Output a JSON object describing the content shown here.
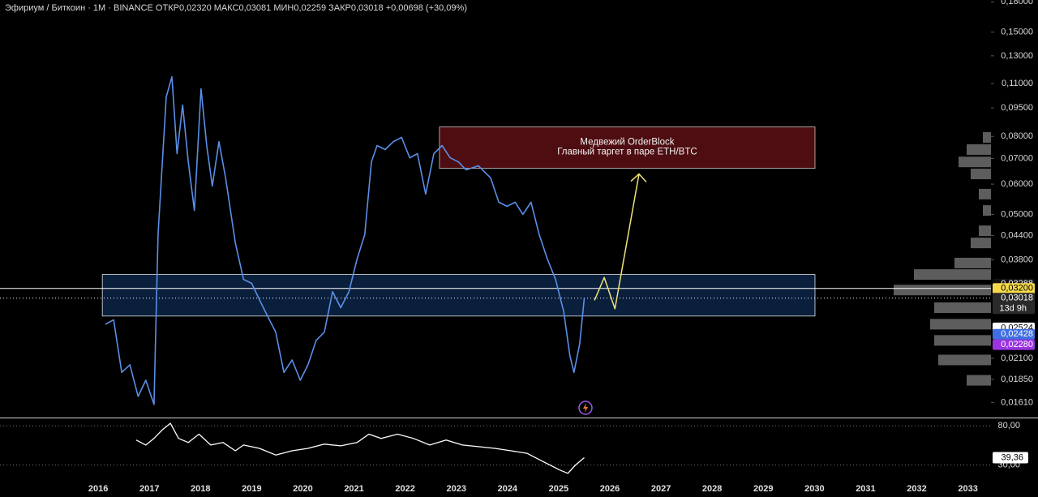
{
  "chart_data": [
    {
      "type": "line",
      "log_scale": true,
      "title": "Эфириум / Биткоин · 1М · BINANCE  ОТКР0,02320  МАКС0,03081  МИН0,02259  ЗАКР0,03018  +0,00698 (+30,09%)",
      "xlim": [
        2014.08,
        2033.45
      ],
      "xticks": [
        2016,
        2017,
        2018,
        2019,
        2020,
        2021,
        2022,
        2023,
        2024,
        2025,
        2026,
        2027,
        2028,
        2029,
        2030,
        2031,
        2032,
        2033
      ],
      "ylim": [
        0.0147,
        0.182
      ],
      "yticks": [
        {
          "value": 0.18,
          "label": "0,18000"
        },
        {
          "value": 0.15,
          "label": "0,15000"
        },
        {
          "value": 0.13,
          "label": "0,13000"
        },
        {
          "value": 0.11,
          "label": "0,11000"
        },
        {
          "value": 0.095,
          "label": "0,09500"
        },
        {
          "value": 0.08,
          "label": "0,08000"
        },
        {
          "value": 0.07,
          "label": "0,07000"
        },
        {
          "value": 0.06,
          "label": "0,06000"
        },
        {
          "value": 0.05,
          "label": "0,05000"
        },
        {
          "value": 0.044,
          "label": "0,04400"
        },
        {
          "value": 0.038,
          "label": "0,03800"
        },
        {
          "value": 0.021,
          "label": "0,02100"
        },
        {
          "value": 0.0185,
          "label": "0,01850"
        },
        {
          "value": 0.0161,
          "label": "0,01610"
        }
      ],
      "series": [
        {
          "color": "#5b8fe8",
          "x": [
            2016.14,
            2016.3,
            2016.46,
            2016.62,
            2016.78,
            2016.93,
            2017.09,
            2017.17,
            2017.33,
            2017.44,
            2017.54,
            2017.65,
            2017.76,
            2017.88,
            2018.01,
            2018.12,
            2018.23,
            2018.36,
            2018.49,
            2018.68,
            2018.84,
            2019.0,
            2019.15,
            2019.31,
            2019.47,
            2019.63,
            2019.79,
            2019.95,
            2020.1,
            2020.26,
            2020.42,
            2020.58,
            2020.74,
            2020.9,
            2021.06,
            2021.21,
            2021.34,
            2021.45,
            2021.61,
            2021.77,
            2021.93,
            2022.09,
            2022.24,
            2022.4,
            2022.56,
            2022.72,
            2022.88,
            2023.04,
            2023.19,
            2023.43,
            2023.67,
            2023.83,
            2023.99,
            2024.15,
            2024.3,
            2024.46,
            2024.62,
            2024.78,
            2024.94,
            2025.1,
            2025.22,
            2025.3,
            2025.41,
            2025.5
          ],
          "values": [
            0.0258,
            0.0265,
            0.0193,
            0.0202,
            0.0167,
            0.0184,
            0.0159,
            0.0443,
            0.1015,
            0.1146,
            0.0721,
            0.0966,
            0.0686,
            0.0512,
            0.1066,
            0.0757,
            0.0593,
            0.0775,
            0.0623,
            0.0421,
            0.0338,
            0.033,
            0.0299,
            0.0271,
            0.0246,
            0.0193,
            0.0208,
            0.0184,
            0.0202,
            0.0234,
            0.0246,
            0.0314,
            0.0285,
            0.0314,
            0.0382,
            0.0443,
            0.0686,
            0.0757,
            0.0739,
            0.0775,
            0.0795,
            0.0703,
            0.0721,
            0.0565,
            0.0721,
            0.0757,
            0.0703,
            0.0686,
            0.0654,
            0.067,
            0.0623,
            0.0538,
            0.0525,
            0.0538,
            0.05,
            0.0538,
            0.0443,
            0.0382,
            0.0338,
            0.0278,
            0.0213,
            0.0193,
            0.0229,
            0.03018
          ]
        }
      ],
      "zones": [
        {
          "x": [
            2022.67,
            2030.01
          ],
          "y": [
            0.066,
            0.0847
          ],
          "color": "#5c0f14",
          "border": "#c9c9c9",
          "label_lines": [
            "Медвежий OrderBlock",
            "Главный таргет в паре ETH/BTC"
          ]
        },
        {
          "x": [
            2016.08,
            2030.01
          ],
          "y": [
            0.0271,
            0.0348
          ],
          "color": "#0c2447",
          "border": "#e6e6e6"
        }
      ],
      "hlines": [
        {
          "value": 0.032,
          "dash": "none"
        },
        {
          "value": 0.03018,
          "dash": "1 3"
        }
      ],
      "projection": {
        "color": "#f0e27a",
        "x": [
          2025.7,
          2025.89,
          2026.1,
          2026.57
        ],
        "values": [
          0.0298,
          0.0342,
          0.0283,
          0.0638
        ]
      },
      "volume_profile": {
        "color": "#6d6d6d",
        "levels": [
          0.0184,
          0.0208,
          0.0234,
          0.0258,
          0.0285,
          0.0317,
          0.0348,
          0.0373,
          0.0421,
          0.0453,
          0.0512,
          0.0565,
          0.0638,
          0.0686,
          0.0739,
          0.0795
        ],
        "values": [
          30,
          65,
          70,
          75,
          70,
          120,
          95,
          45,
          25,
          15,
          10,
          15,
          25,
          40,
          30,
          10
        ]
      },
      "price_labels": [
        {
          "value": 0.03288,
          "label": "0,03288",
          "color": "#111111",
          "text_color": "#ffffff"
        },
        {
          "value": 0.032,
          "label": "0,03200",
          "color": "#f5d94a",
          "text_color": "#000000"
        },
        {
          "value": 0.03018,
          "label": "0,03018",
          "color": "#2a2a2a",
          "text_color": "#ffffff",
          "countdown": "13d 9h"
        },
        {
          "value": 0.02524,
          "label": "0,02524",
          "color": "#ffffff",
          "text_color": "#000000"
        },
        {
          "value": 0.02428,
          "label": "0,02428",
          "color": "#3f6fe0",
          "text_color": "#ffffff"
        },
        {
          "value": 0.0228,
          "label": "0,02280",
          "color": "#9b34e0",
          "text_color": "#ffffff"
        }
      ]
    },
    {
      "type": "line",
      "ylim": [
        10.9,
        88.5
      ],
      "yticks": [
        {
          "value": 80,
          "label": "80,00"
        },
        {
          "value": 30,
          "label": "30,00"
        }
      ],
      "series": [
        {
          "color": "#ffffff",
          "x": [
            2016.74,
            2016.93,
            2017.09,
            2017.25,
            2017.41,
            2017.57,
            2017.76,
            2017.97,
            2018.2,
            2018.44,
            2018.68,
            2018.84,
            2019.15,
            2019.47,
            2019.79,
            2020.1,
            2020.42,
            2020.74,
            2021.06,
            2021.29,
            2021.53,
            2021.85,
            2022.16,
            2022.48,
            2022.8,
            2023.12,
            2023.43,
            2023.75,
            2024.07,
            2024.38,
            2024.7,
            2025.02,
            2025.18,
            2025.33,
            2025.5
          ],
          "values": [
            61.9,
            55.5,
            64.0,
            74.7,
            83.2,
            64.0,
            58.7,
            69.4,
            55.5,
            58.7,
            48.1,
            55.5,
            51.3,
            42.8,
            48.1,
            51.3,
            56.6,
            54.5,
            58.7,
            69.4,
            64.0,
            69.4,
            64.0,
            55.5,
            61.9,
            55.5,
            53.4,
            51.3,
            48.1,
            44.9,
            34.3,
            23.6,
            19.4,
            30.0,
            39.36
          ],
          "value_labels": [
            null,
            null,
            null,
            null,
            null,
            null,
            null,
            null,
            null,
            null,
            null,
            null,
            null,
            null,
            null,
            null,
            null,
            null,
            null,
            null,
            null,
            null,
            null,
            null,
            null,
            null,
            null,
            null,
            null,
            null,
            null,
            null,
            null,
            null,
            "39,36"
          ]
        }
      ]
    }
  ]
}
